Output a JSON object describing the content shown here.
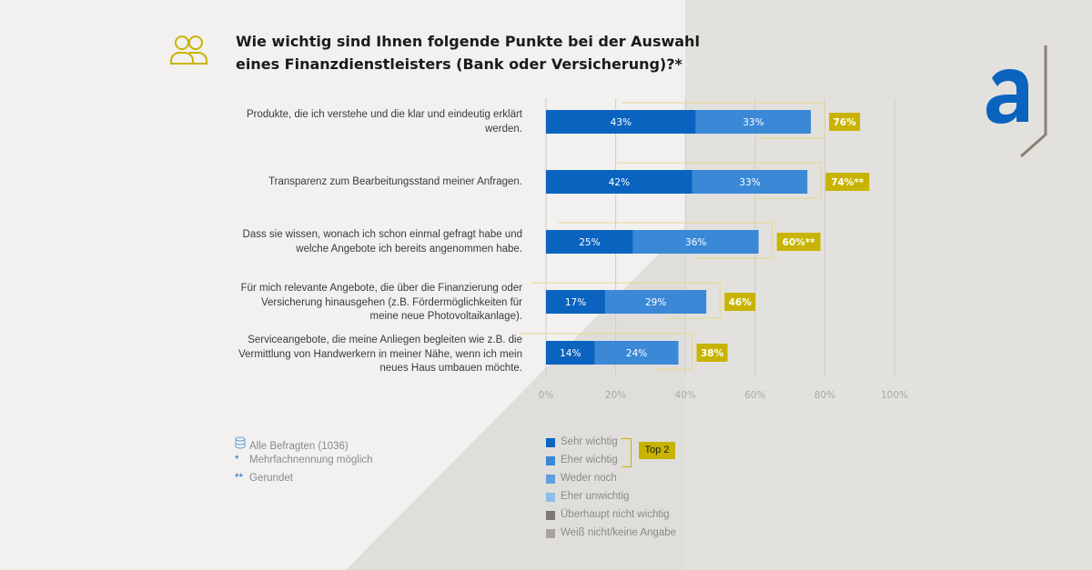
{
  "title": "Wie wichtig sind Ihnen folgende Punkte bei der Auswahl eines Finanzdienstleisters (Bank oder Versicherung)?*",
  "icons": {
    "header": "people-icon",
    "logo": "brand-logo-a"
  },
  "colors": {
    "sehr_wichtig": "#0a63bf",
    "eher_wichtig": "#3a88d6",
    "weder_noch": "#5f9fdc",
    "eher_unwichtig": "#8ebfe8",
    "ueberhaupt_nicht": "#7d7873",
    "weiss_nicht": "#a8a29c",
    "highlight": "#c8b400"
  },
  "notes": [
    {
      "mark": "",
      "icon": "database-icon",
      "text": "Alle Befragten (1036)"
    },
    {
      "mark": "*",
      "text": "Mehrfachnennung möglich"
    },
    {
      "mark": "**",
      "text": "Gerundet"
    }
  ],
  "legend": [
    {
      "label": "Sehr wichtig",
      "color": "#0a63bf"
    },
    {
      "label": "Eher wichtig",
      "color": "#3a88d6"
    },
    {
      "label": "Weder noch",
      "color": "#5f9fdc"
    },
    {
      "label": "Eher unwichtig",
      "color": "#8ebfe8"
    },
    {
      "label": "Überhaupt nicht wichtig",
      "color": "#7d7873"
    },
    {
      "label": "Weiß nicht/keine Angabe",
      "color": "#a8a29c"
    }
  ],
  "top2_label": "Top 2",
  "chart_data": {
    "type": "bar",
    "orientation": "horizontal",
    "stacked": true,
    "categories": [
      "Produkte, die ich verstehe und die klar und eindeutig erklärt werden.",
      "Transparenz zum Bearbeitungsstand meiner Anfragen.",
      "Dass sie wissen, wonach ich schon einmal gefragt habe und welche Angebote ich bereits angenommen habe.",
      "Für mich relevante Angebote, die über die Finanzierung oder Versicherung hinausgehen (z.B. Fördermöglichkeiten für meine neue Photovoltaikanlage).",
      "Serviceangebote, die meine Anliegen begleiten wie z.B. die Vermittlung von Handwerkern in meiner Nähe, wenn ich mein neues Haus umbauen möchte."
    ],
    "series": [
      {
        "name": "Sehr wichtig",
        "values": [
          43,
          42,
          25,
          17,
          14
        ],
        "labels": [
          "43%",
          "42%",
          "25%",
          "17%",
          "14%"
        ]
      },
      {
        "name": "Eher wichtig",
        "values": [
          33,
          33,
          36,
          29,
          24
        ],
        "labels": [
          "33%",
          "33%",
          "36%",
          "29%",
          "24%"
        ]
      }
    ],
    "totals": [
      "76%",
      "74%**",
      "60%**",
      "46%",
      "38%"
    ],
    "total_values": [
      76,
      74,
      60,
      46,
      38
    ],
    "xlim": [
      0,
      100
    ],
    "xticks": [
      "0%",
      "20%",
      "40%",
      "60%",
      "80%",
      "100%"
    ],
    "grid": true,
    "legend_position": "bottom"
  }
}
